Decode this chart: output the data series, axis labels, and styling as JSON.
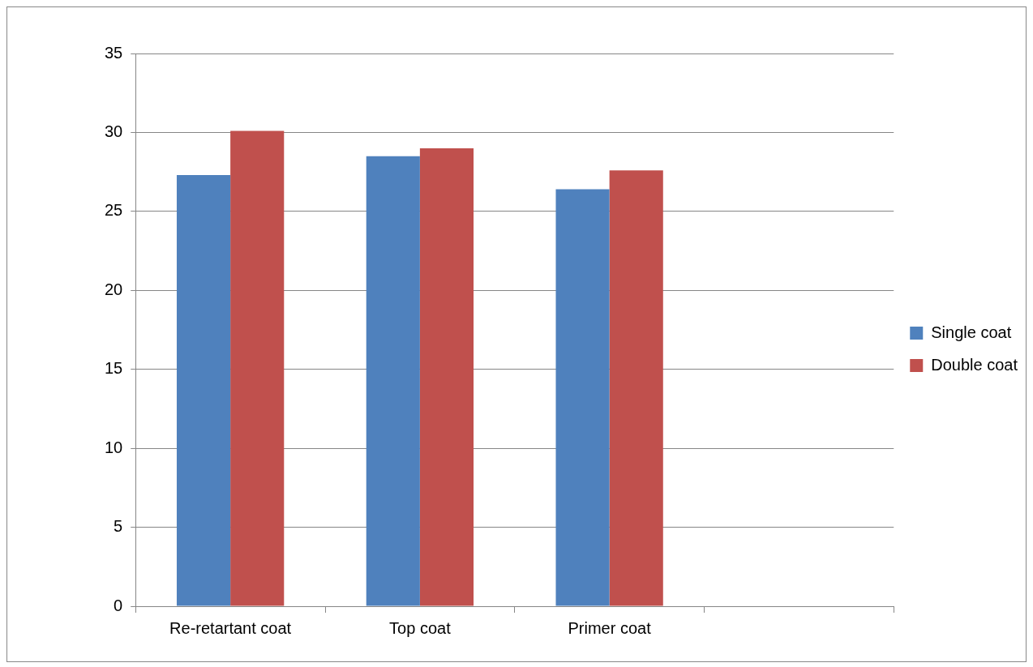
{
  "chart_data": {
    "type": "bar",
    "categories": [
      "Re-retartant coat",
      "Top coat",
      "Primer coat",
      null
    ],
    "series": [
      {
        "name": "Single coat",
        "color": "#4f81bd",
        "values": [
          27.3,
          28.5,
          26.4,
          null
        ]
      },
      {
        "name": "Double coat",
        "color": "#c0504d",
        "values": [
          30.1,
          29.0,
          27.6,
          null
        ]
      }
    ],
    "ylim": [
      0,
      35
    ],
    "yticks": [
      0,
      5,
      10,
      15,
      20,
      25,
      30,
      35
    ],
    "grid": "y",
    "legend": "right"
  }
}
